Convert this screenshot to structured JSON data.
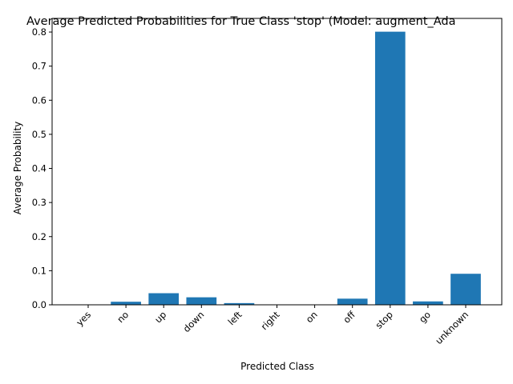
{
  "chart_data": {
    "type": "bar",
    "title": "Average Predicted Probabilities for True Class 'stop' (Model: augment_Ada",
    "xlabel": "Predicted Class",
    "ylabel": "Average Probability",
    "categories": [
      "yes",
      "no",
      "up",
      "down",
      "left",
      "right",
      "on",
      "off",
      "stop",
      "go",
      "unknown"
    ],
    "values": [
      0.0,
      0.009,
      0.034,
      0.022,
      0.005,
      0.0,
      0.0,
      0.018,
      0.801,
      0.01,
      0.091
    ],
    "ylim": [
      0,
      0.84
    ],
    "yticks": [
      "0.0",
      "0.1",
      "0.2",
      "0.3",
      "0.4",
      "0.5",
      "0.6",
      "0.7",
      "0.8"
    ],
    "grid": false,
    "bar_color": "#1f77b4"
  }
}
